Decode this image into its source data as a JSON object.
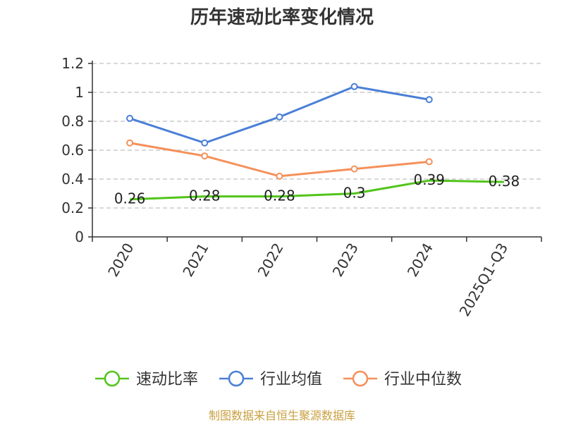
{
  "title": "历年速动比率变化情况",
  "source": "制图数据来自恒生聚源数据库",
  "colors": {
    "source_text": "#c8a040",
    "grid": "#c0c0c0",
    "axis": "#333333"
  },
  "chart_data": {
    "type": "line",
    "title": "历年速动比率变化情况",
    "xlabel": "",
    "ylabel": "",
    "ylim": [
      0,
      1.2
    ],
    "yticks": [
      0,
      0.2,
      0.4,
      0.6,
      0.8,
      1,
      1.2
    ],
    "ytick_labels": [
      "0",
      "0.2",
      "0.4",
      "0.6",
      "0.8",
      "1",
      "1.2"
    ],
    "grid": true,
    "legend_position": "bottom",
    "categories": [
      "2020",
      "2021",
      "2022",
      "2023",
      "2024",
      "2025Q1-Q3"
    ],
    "series": [
      {
        "name": "速动比率",
        "color": "#52c41a",
        "values": [
          0.26,
          0.28,
          0.28,
          0.3,
          0.39,
          0.38
        ],
        "labels": [
          "0.26",
          "0.28",
          "0.28",
          "0.3",
          "0.39",
          "0.38"
        ],
        "show_markers": false
      },
      {
        "name": "行业均值",
        "color": "#4a7fd6",
        "values": [
          0.82,
          0.65,
          0.83,
          1.04,
          0.95,
          null
        ],
        "show_markers": true
      },
      {
        "name": "行业中位数",
        "color": "#f5905a",
        "values": [
          0.65,
          0.56,
          0.42,
          0.47,
          0.52,
          null
        ],
        "show_markers": true
      }
    ]
  }
}
